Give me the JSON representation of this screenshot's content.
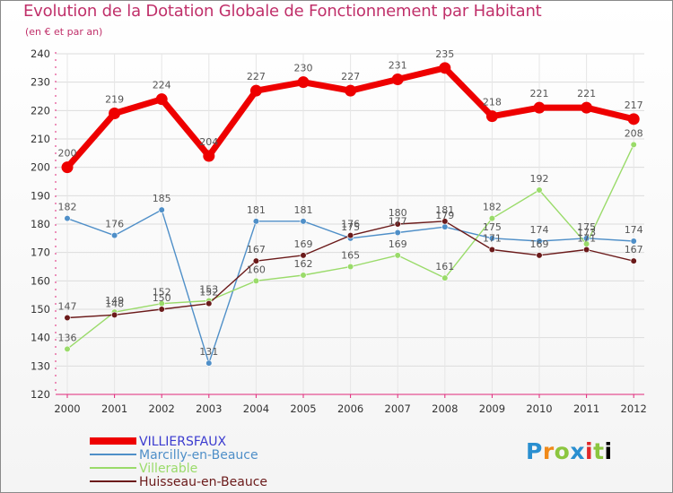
{
  "chart_data": {
    "type": "line",
    "title": "Evolution de la Dotation Globale de Fonctionnement par Habitant",
    "subtitle": "(en € et par an)",
    "xlabel": "",
    "ylabel": "",
    "ylim": [
      120,
      240
    ],
    "yticks": [
      120,
      130,
      140,
      150,
      160,
      170,
      180,
      190,
      200,
      210,
      220,
      230,
      240
    ],
    "grid": true,
    "legend_position": "bottom-left",
    "x": [
      "2000",
      "2001",
      "2002",
      "2003",
      "2004",
      "2005",
      "2006",
      "2007",
      "2008",
      "2009",
      "2010",
      "2011",
      "2012"
    ],
    "series": [
      {
        "name": "VILLIERSFAUX",
        "color": "#ee0000",
        "label_color": "#5a5a5a",
        "values": [
          200,
          219,
          224,
          204,
          227,
          230,
          227,
          231,
          235,
          218,
          221,
          221,
          217
        ]
      },
      {
        "name": "Marcilly-en-Beauce",
        "color": "#4f8fc8",
        "label_color": "#4f8fc8",
        "values": [
          182,
          176,
          185,
          131,
          181,
          181,
          175,
          177,
          179,
          175,
          174,
          175,
          174
        ]
      },
      {
        "name": "Villerable",
        "color": "#9adb6a",
        "label_color": "#5a5a5a",
        "values": [
          136,
          149,
          152,
          153,
          160,
          162,
          165,
          169,
          161,
          182,
          192,
          173,
          208
        ]
      },
      {
        "name": "Huisseau-en-Beauce",
        "color": "#6b1a1a",
        "label_color": "#5a5a5a",
        "values": [
          147,
          148,
          150,
          152,
          167,
          169,
          176,
          180,
          181,
          171,
          169,
          171,
          167
        ]
      }
    ]
  },
  "logo": {
    "letters": [
      "P",
      "r",
      "o",
      "x",
      "i",
      "t",
      "i"
    ]
  }
}
